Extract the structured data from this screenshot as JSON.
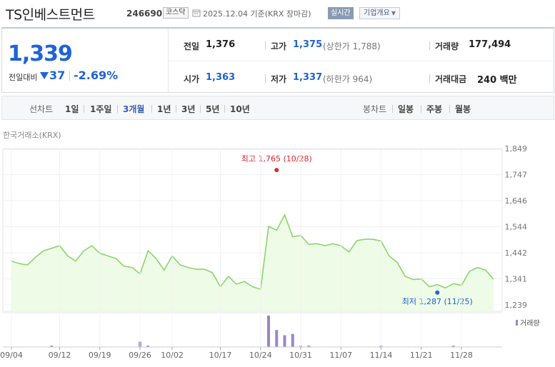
{
  "header": {
    "stock_name": "TS인베스트먼트",
    "stock_code": "246690",
    "market": "코스닥",
    "date_info": "2025.12.04  기준(KRX 장마감)",
    "realtime_label": "실시간",
    "company_label": "기업개요"
  },
  "price": {
    "current": "1,339",
    "change_label": "전일대비",
    "change_value": "37",
    "change_percent": "-2.69%",
    "direction": "down",
    "color": "#1f63d6"
  },
  "summary": {
    "prev_close_label": "전일",
    "prev_close": "1,376",
    "high_label": "고가",
    "high": "1,375",
    "upper_limit": "(상한가 1,788)",
    "volume_label": "거래량",
    "volume": "177,494",
    "open_label": "시가",
    "open": "1,363",
    "low_label": "저가",
    "low": "1,337",
    "lower_limit": "(하한가 964)",
    "amount_label": "거래대금",
    "amount": "240 백만"
  },
  "periods": {
    "line_label": "선차트",
    "line_options": [
      "1일",
      "1주일",
      "3개월",
      "1년",
      "3년",
      "5년",
      "10년"
    ],
    "active": "3개월",
    "candle_label": "봉차트",
    "candle_options": [
      "일봉",
      "주봉",
      "월봉"
    ]
  },
  "chart_data": {
    "type": "area",
    "exchange_label": "한국거래소(KRX)",
    "x_ticks": [
      "09/04",
      "09/12",
      "09/19",
      "09/26",
      "10/02",
      "10/17",
      "10/24",
      "10/31",
      "11/07",
      "11/14",
      "11/21",
      "11/28"
    ],
    "y_ticks": [
      1849,
      1747,
      1646,
      1544,
      1442,
      1341,
      1239
    ],
    "ylim": [
      1239,
      1849
    ],
    "dates": [
      "09/04",
      "09/05",
      "09/08",
      "09/09",
      "09/10",
      "09/11",
      "09/12",
      "09/15",
      "09/16",
      "09/17",
      "09/18",
      "09/19",
      "09/22",
      "09/23",
      "09/24",
      "09/25",
      "09/26",
      "09/29",
      "09/30",
      "10/01",
      "10/02",
      "10/10",
      "10/13",
      "10/14",
      "10/15",
      "10/16",
      "10/17",
      "10/20",
      "10/21",
      "10/22",
      "10/23",
      "10/24",
      "10/27",
      "10/28",
      "10/29",
      "10/30",
      "10/31",
      "11/03",
      "11/04",
      "11/05",
      "11/06",
      "11/07",
      "11/10",
      "11/11",
      "11/12",
      "11/13",
      "11/14",
      "11/17",
      "11/18",
      "11/19",
      "11/20",
      "11/21",
      "11/24",
      "11/25",
      "11/26",
      "11/27",
      "11/28",
      "12/01",
      "12/02",
      "12/03",
      "12/04"
    ],
    "close": [
      1410,
      1400,
      1395,
      1425,
      1450,
      1460,
      1470,
      1430,
      1410,
      1450,
      1470,
      1440,
      1430,
      1420,
      1390,
      1385,
      1360,
      1450,
      1420,
      1375,
      1430,
      1395,
      1385,
      1378,
      1378,
      1365,
      1310,
      1350,
      1320,
      1330,
      1310,
      1300,
      1545,
      1530,
      1590,
      1505,
      1510,
      1475,
      1478,
      1470,
      1478,
      1470,
      1445,
      1490,
      1495,
      1495,
      1488,
      1430,
      1405,
      1350,
      1338,
      1340,
      1310,
      1318,
      1305,
      1322,
      1315,
      1370,
      1385,
      1375,
      1339
    ],
    "volume": [
      0,
      0,
      0,
      0,
      0,
      1,
      0,
      0,
      0,
      0,
      0,
      0,
      0,
      0,
      0,
      0,
      4,
      1,
      0,
      0,
      0,
      0,
      0,
      0,
      0,
      0,
      0,
      0,
      0,
      0,
      0,
      0,
      24,
      13,
      9,
      10,
      1,
      1,
      0,
      0,
      0,
      0,
      0,
      0,
      0,
      0,
      1,
      0,
      0,
      0,
      0,
      0,
      0,
      0,
      0,
      1,
      0,
      0,
      0,
      0,
      0
    ],
    "max_label": "최고 1,765 (10/28)",
    "max_value": 1765,
    "max_date": "10/28",
    "min_label": "최저 1,287 (11/25)",
    "min_value": 1287,
    "min_date": "11/25",
    "volume_legend": "거래량",
    "line_color": "#8ad66a",
    "fill_color": "#eefbe7",
    "volume_color": "#9b86c7",
    "max_color": "#e0282e",
    "min_color": "#1f63d6"
  }
}
